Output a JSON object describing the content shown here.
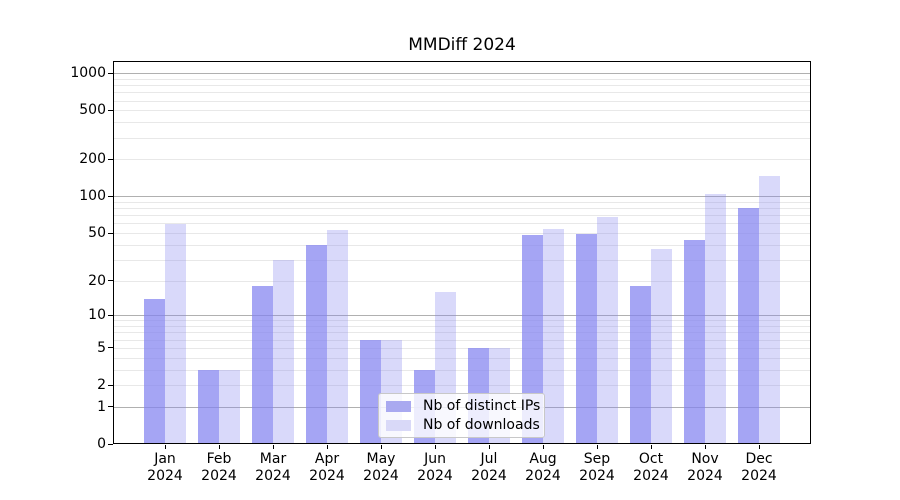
{
  "title": "MMDiff 2024",
  "chart_data": {
    "type": "bar",
    "title": "MMDiff 2024",
    "categories": [
      "Jan",
      "Feb",
      "Mar",
      "Apr",
      "May",
      "Jun",
      "Jul",
      "Aug",
      "Sep",
      "Oct",
      "Nov",
      "Dec"
    ],
    "category_year": "2024",
    "series": [
      {
        "name": "Nb of distinct IPs",
        "key": "distinct-ips",
        "values": [
          14,
          3,
          18,
          40,
          6,
          3,
          5,
          48,
          49,
          18,
          44,
          80
        ]
      },
      {
        "name": "Nb of downloads",
        "key": "downloads",
        "values": [
          59,
          3,
          30,
          53,
          6,
          16,
          5,
          54,
          68,
          37,
          104,
          146
        ]
      }
    ],
    "yscale": "log(value+1)",
    "yticks": [
      0,
      1,
      2,
      5,
      10,
      20,
      50,
      100,
      200,
      500,
      1000
    ],
    "ylim": [
      0,
      1259
    ],
    "grid": true,
    "legend_position": "lower center",
    "colors": {
      "bar_dark": "rgba(130,130,240,0.72)",
      "bar_light": "rgba(130,130,240,0.30)",
      "legend_dark": "#a9a9f0",
      "legend_light": "#d9d9f8",
      "grid_major": "#b0b0b0",
      "grid_minor": "#e8e8e8",
      "spine": "#000000"
    }
  }
}
